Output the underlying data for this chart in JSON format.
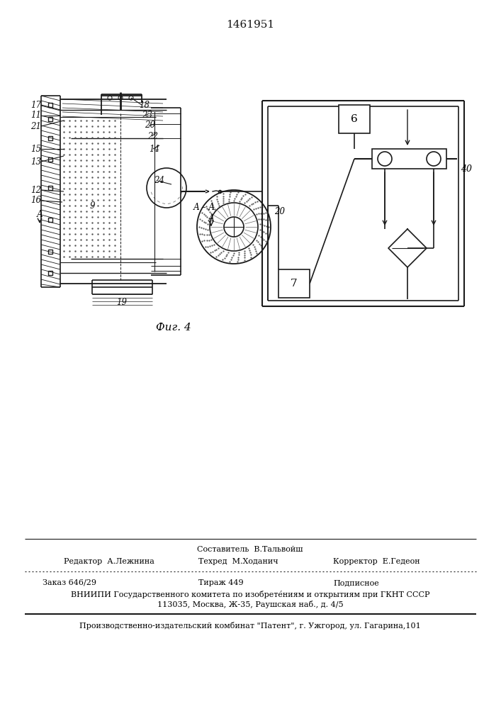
{
  "title": "1461951",
  "fig_label": "Фиг. 4",
  "bg_color": "#ffffff",
  "line_color": "#1a1a1a",
  "footer": {
    "line1_center": "Составитель  В.Тальвойш",
    "line2_left": "Редактор  А.Лежнина",
    "line2_center": "Техред  М.Ходанич",
    "line2_right": "Корректор  Е.Гедеон",
    "line3_left": "Заказ 646/29",
    "line3_center": "Тираж 449",
    "line3_right": "Подписное",
    "line4": "ВНИИПИ Государственного комитета по изобрете́ниям и открытиям при ГКНТ СССР",
    "line5": "113035, Москва, Ж-35, Раушская наб., д. 4/5",
    "line6": "Производственно-издательский комбинат \"Патент\", г. Ужгород, ул. Гагарина,101"
  }
}
